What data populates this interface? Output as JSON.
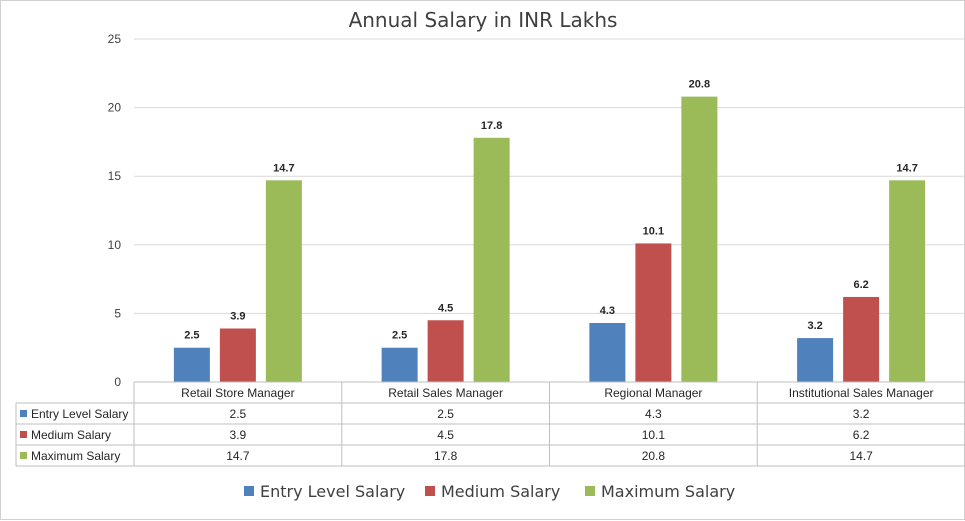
{
  "chart_data": {
    "type": "bar",
    "title": "Annual Salary in INR Lakhs",
    "categories": [
      "Retail Store Manager",
      "Retail Sales Manager",
      "Regional Manager",
      "Institutional Sales Manager"
    ],
    "series": [
      {
        "name": "Entry Level Salary",
        "color": "#4F81BD",
        "values": [
          2.5,
          2.5,
          4.3,
          3.2
        ],
        "labels": [
          "2.5",
          "2.5",
          "4.3",
          "3.2"
        ]
      },
      {
        "name": "Medium Salary",
        "color": "#C0504D",
        "values": [
          3.9,
          4.5,
          10.1,
          6.2
        ],
        "labels": [
          "3.9",
          "4.5",
          "10.1",
          "6.2"
        ]
      },
      {
        "name": "Maximum Salary",
        "color": "#9BBB59",
        "values": [
          14.7,
          17.8,
          20.8,
          14.7
        ],
        "labels": [
          "14.7",
          "17.8",
          "20.8",
          "14.7"
        ]
      }
    ],
    "ylim": [
      0,
      25
    ],
    "yticks": [
      0,
      5,
      10,
      15,
      20,
      25
    ],
    "ytick_labels": [
      "0",
      "5",
      "10",
      "15",
      "20",
      "25"
    ],
    "grid": true,
    "data_table": true,
    "legend_position": "bottom"
  }
}
